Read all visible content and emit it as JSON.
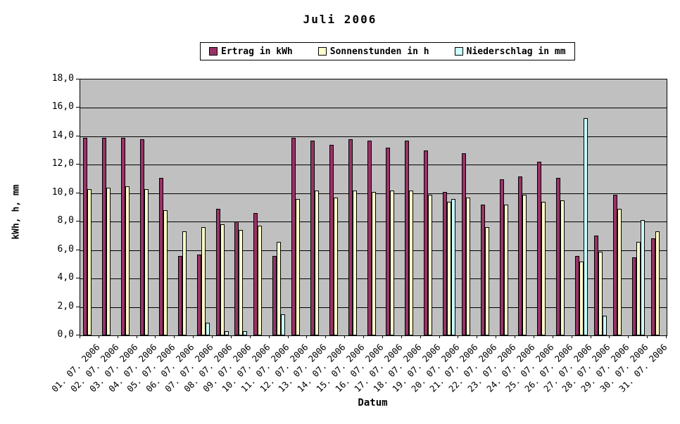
{
  "chart_data": {
    "type": "bar",
    "title": "Juli 2006",
    "xlabel": "Datum",
    "ylabel": "kWh, h, mm",
    "ylim": [
      0,
      18
    ],
    "ytick_step": 2,
    "yticks": [
      "0,0",
      "2,0",
      "4,0",
      "6,0",
      "8,0",
      "10,0",
      "12,0",
      "14,0",
      "16,0",
      "18,0"
    ],
    "grid": true,
    "legend_position": "top",
    "plot_background": "#C0C0C0",
    "gridline_color": "#000000",
    "categories": [
      "01. 07. 2006",
      "02. 07. 2006",
      "03. 07. 2006",
      "04. 07. 2006",
      "05. 07. 2006",
      "06. 07. 2006",
      "07. 07. 2006",
      "08. 07. 2006",
      "09. 07. 2006",
      "10. 07. 2006",
      "11. 07. 2006",
      "12. 07. 2006",
      "13. 07. 2006",
      "14. 07. 2006",
      "15. 07. 2006",
      "16. 07. 2006",
      "17. 07. 2006",
      "18. 07. 2006",
      "19. 07. 2006",
      "20. 07. 2006",
      "21. 07. 2006",
      "22. 07. 2006",
      "23. 07. 2006",
      "24. 07. 2006",
      "25. 07. 2006",
      "26. 07. 2006",
      "27. 07. 2006",
      "28. 07. 2006",
      "29. 07. 2006",
      "30. 07. 2006",
      "31. 07. 2006"
    ],
    "series": [
      {
        "name": "Ertrag in kWh",
        "color": "#993366",
        "values": [
          13.9,
          13.9,
          13.9,
          13.8,
          11.1,
          5.6,
          5.7,
          8.9,
          8.0,
          8.6,
          5.6,
          13.9,
          13.7,
          13.4,
          13.8,
          13.7,
          13.2,
          13.7,
          13.0,
          10.1,
          12.8,
          9.2,
          11.0,
          11.2,
          12.2,
          11.1,
          5.6,
          7.0,
          9.9,
          5.5,
          6.8
        ]
      },
      {
        "name": "Sonnenstunden in h",
        "color": "#FFFFCC",
        "values": [
          10.3,
          10.4,
          10.5,
          10.3,
          8.8,
          7.3,
          7.6,
          7.8,
          7.4,
          7.7,
          6.6,
          9.6,
          10.2,
          9.7,
          10.2,
          10.1,
          10.2,
          10.2,
          9.9,
          9.4,
          9.7,
          7.6,
          9.2,
          9.9,
          9.4,
          9.5,
          5.2,
          5.9,
          8.9,
          6.6,
          7.3
        ]
      },
      {
        "name": "Niederschlag in mm",
        "color": "#CCFFFF",
        "values": [
          0,
          0,
          0,
          0,
          0,
          0,
          0.9,
          0.3,
          0.3,
          0,
          1.5,
          0,
          0,
          0,
          0,
          0,
          0,
          0,
          0,
          9.6,
          0,
          0,
          0,
          0,
          0,
          0,
          15.3,
          1.4,
          0,
          8.1,
          0
        ]
      }
    ]
  }
}
